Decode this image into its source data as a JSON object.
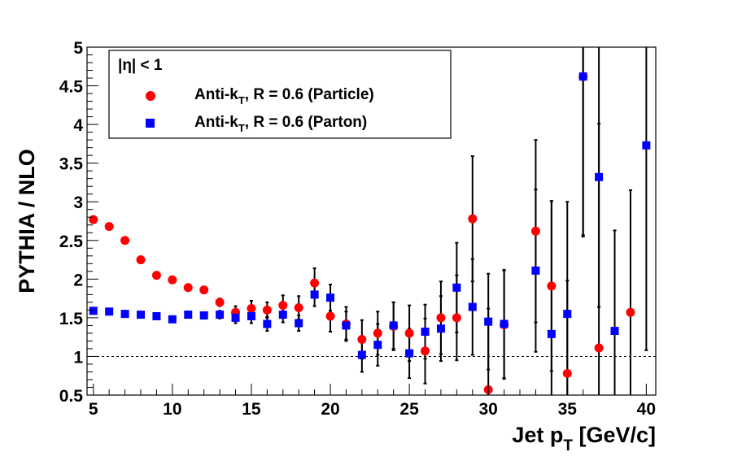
{
  "chart_data": {
    "type": "scatter",
    "xlabel_main": "Jet p",
    "xlabel_sub": "T",
    "xlabel_unit": " [GeV/c]",
    "ylabel": "PYTHIA / NLO",
    "xlim": [
      4.6,
      40.6
    ],
    "ylim": [
      0.5,
      5
    ],
    "x_ticks": [
      5,
      10,
      15,
      20,
      25,
      30,
      35,
      40
    ],
    "y_ticks": [
      0.5,
      1,
      1.5,
      2,
      2.5,
      3,
      3.5,
      4,
      4.5,
      5
    ],
    "y_tick_labels": [
      "0.5",
      "1",
      "1.5",
      "2",
      "2.5",
      "3",
      "3.5",
      "4",
      "4.5",
      "5"
    ],
    "reference_line": 1,
    "grid": false,
    "legend": {
      "placement": "top-left",
      "header": "|η| < 1",
      "entries": [
        {
          "pre": "Anti-k",
          "sub": "T",
          "post": ", R = 0.6 (Particle)",
          "color": "#ff0000",
          "marker": "circle"
        },
        {
          "pre": "Anti-k",
          "sub": "T",
          "post": ", R = 0.6 (Parton)",
          "color": "#0000ff",
          "marker": "square"
        }
      ]
    },
    "series": [
      {
        "name": "Anti-kT, R = 0.6 (Particle)",
        "color": "#ff0000",
        "marker": "circle",
        "x": [
          5,
          6,
          7,
          8,
          9,
          10,
          11,
          12,
          13,
          14,
          15,
          16,
          17,
          18,
          19,
          20,
          21,
          22,
          23,
          24,
          25,
          26,
          27,
          28,
          29,
          30,
          31,
          33,
          34,
          35,
          36,
          37,
          39
        ],
        "y": [
          2.77,
          2.68,
          2.5,
          2.25,
          2.05,
          1.99,
          1.89,
          1.86,
          1.7,
          1.57,
          1.62,
          1.6,
          1.66,
          1.63,
          1.95,
          1.52,
          1.42,
          1.22,
          1.3,
          1.39,
          1.3,
          1.07,
          1.5,
          1.5,
          2.78,
          0.57,
          1.41,
          2.62,
          1.91,
          0.78,
          4.62,
          1.11,
          1.57
        ],
        "err": [
          0,
          0,
          0,
          0,
          0,
          0,
          0,
          0,
          0.05,
          0.08,
          0.1,
          0.1,
          0.13,
          0.15,
          0.19,
          0.2,
          0.22,
          0.25,
          0.28,
          0.31,
          0.36,
          0.42,
          0.47,
          0.55,
          0.81,
          1.05,
          0.7,
          1.18,
          1.1,
          1.2,
          2.05,
          2.9,
          1.58
        ]
      },
      {
        "name": "Anti-kT, R = 0.6 (Parton)",
        "color": "#0000ff",
        "marker": "square",
        "x": [
          5,
          6,
          7,
          8,
          9,
          10,
          11,
          12,
          13,
          14,
          15,
          16,
          17,
          18,
          19,
          20,
          21,
          22,
          23,
          24,
          25,
          26,
          27,
          28,
          29,
          30,
          31,
          33,
          34,
          35,
          36,
          37,
          38,
          40
        ],
        "y": [
          1.59,
          1.58,
          1.55,
          1.54,
          1.52,
          1.48,
          1.54,
          1.53,
          1.54,
          1.5,
          1.52,
          1.42,
          1.54,
          1.43,
          1.8,
          1.76,
          1.4,
          1.02,
          1.15,
          1.4,
          1.04,
          1.32,
          1.36,
          1.89,
          1.64,
          1.45,
          1.42,
          2.11,
          1.29,
          1.55,
          4.62,
          3.32,
          1.33,
          3.73
        ],
        "err": [
          0,
          0,
          0,
          0,
          0,
          0,
          0,
          0,
          0.05,
          0.07,
          0.09,
          0.09,
          0.1,
          0.1,
          0.15,
          0.17,
          0.18,
          0.22,
          0.27,
          0.3,
          0.32,
          0.35,
          0.42,
          0.58,
          0.62,
          0.62,
          0.7,
          1.05,
          1.72,
          1.45,
          2.07,
          1.68,
          1.3,
          2.65
        ]
      }
    ]
  }
}
